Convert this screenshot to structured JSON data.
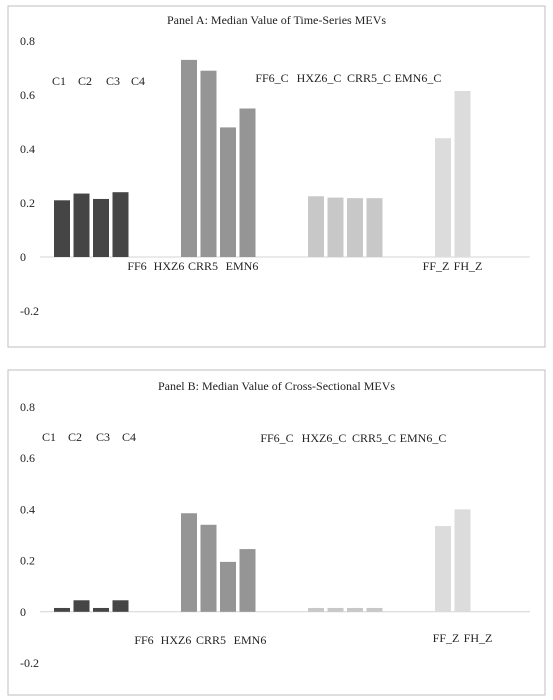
{
  "chart_data": [
    {
      "type": "bar",
      "title": "Panel A: Median Value of Time-Series MEVs",
      "ylim": [
        -0.2,
        0.8
      ],
      "yticks": [
        "0.8",
        "0.6",
        "0.4",
        "0.2",
        "0",
        "-0.2"
      ],
      "grid": false,
      "legend": "none",
      "groups": [
        {
          "color": "#454545",
          "labels": [
            "C1",
            "C2",
            "C3",
            "C4"
          ],
          "values": [
            0.21,
            0.235,
            0.215,
            0.24
          ]
        },
        {
          "color": "#959595",
          "labels": [
            "FF6",
            "HXZ6",
            "CRR5",
            "EMN6"
          ],
          "values": [
            0.73,
            0.69,
            0.48,
            0.55
          ]
        },
        {
          "color": "#c8c8c8",
          "labels": [
            "FF6_C",
            "HXZ6_C",
            "CRR5_C",
            "EMN6_C"
          ],
          "values": [
            0.225,
            0.22,
            0.218,
            0.218
          ]
        },
        {
          "color": "#dcdcdc",
          "labels": [
            "FF_Z",
            "FH_Z"
          ],
          "values": [
            0.44,
            0.615
          ]
        }
      ]
    },
    {
      "type": "bar",
      "title": "Panel B: Median Value of Cross-Sectional MEVs",
      "ylim": [
        -0.2,
        0.8
      ],
      "yticks": [
        "0.8",
        "0.6",
        "0.4",
        "0.2",
        "0",
        "-0.2"
      ],
      "grid": false,
      "legend": "none",
      "groups": [
        {
          "color": "#454545",
          "labels": [
            "C1",
            "C2",
            "C3",
            "C4"
          ],
          "values": [
            0.015,
            0.045,
            0.015,
            0.045
          ]
        },
        {
          "color": "#959595",
          "labels": [
            "FF6",
            "HXZ6",
            "CRR5",
            "EMN6"
          ],
          "values": [
            0.385,
            0.34,
            0.195,
            0.245
          ]
        },
        {
          "color": "#c8c8c8",
          "labels": [
            "FF6_C",
            "HXZ6_C",
            "CRR5_C",
            "EMN6_C"
          ],
          "values": [
            0.015,
            0.015,
            0.015,
            0.015
          ]
        },
        {
          "color": "#dcdcdc",
          "labels": [
            "FF_Z",
            "FH_Z"
          ],
          "values": [
            0.335,
            0.4
          ]
        }
      ]
    }
  ]
}
